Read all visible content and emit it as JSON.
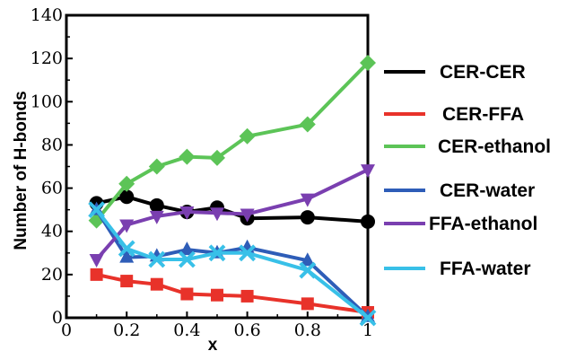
{
  "chart_data": {
    "type": "line",
    "xlabel": "x",
    "ylabel": "Number of H-bonds",
    "xlim": [
      0,
      1
    ],
    "ylim": [
      0,
      140
    ],
    "x_ticks": [
      "0",
      "0.2",
      "0.4",
      "0.6",
      "0.8",
      "1"
    ],
    "y_ticks": [
      "0",
      "20",
      "40",
      "60",
      "80",
      "100",
      "120",
      "140"
    ],
    "legend_position": "right",
    "series": [
      {
        "name": "CER-CER",
        "color": "#000000",
        "marker": "circle",
        "x": [
          0.1,
          0.2,
          0.3,
          0.4,
          0.5,
          0.6,
          0.8,
          1.0
        ],
        "y": [
          53,
          56,
          52,
          49,
          51,
          46,
          46.5,
          44.5
        ]
      },
      {
        "name": "CER-FFA",
        "color": "#e8322a",
        "marker": "square",
        "x": [
          0.1,
          0.2,
          0.3,
          0.4,
          0.5,
          0.6,
          0.8,
          1.0
        ],
        "y": [
          20,
          17,
          15.5,
          11,
          10.5,
          10,
          6.5,
          2.5
        ]
      },
      {
        "name": "CER-ethanol",
        "color": "#5cc457",
        "marker": "diamond",
        "x": [
          0.1,
          0.2,
          0.3,
          0.4,
          0.5,
          0.6,
          0.8,
          1.0
        ],
        "y": [
          45,
          62,
          70,
          74.5,
          74,
          84,
          89.5,
          118
        ]
      },
      {
        "name": "CER-water",
        "color": "#2e5db8",
        "marker": "triangle-up",
        "x": [
          0.1,
          0.2,
          0.3,
          0.4,
          0.5,
          0.6,
          0.8,
          1.0
        ],
        "y": [
          50,
          28,
          28.5,
          31.5,
          30,
          32.5,
          26.5,
          0.5
        ]
      },
      {
        "name": "FFA-ethanol",
        "color": "#7a3fb0",
        "marker": "triangle-down",
        "x": [
          0.1,
          0.2,
          0.3,
          0.4,
          0.5,
          0.6,
          0.8,
          1.0
        ],
        "y": [
          27,
          43,
          47,
          49,
          48.5,
          48,
          55,
          68.5
        ]
      },
      {
        "name": "FFA-water",
        "color": "#38c0e8",
        "marker": "x",
        "x": [
          0.1,
          0.2,
          0.3,
          0.4,
          0.5,
          0.6,
          0.8,
          1.0
        ],
        "y": [
          50,
          32,
          27,
          27,
          30,
          30,
          22,
          0
        ]
      }
    ]
  }
}
